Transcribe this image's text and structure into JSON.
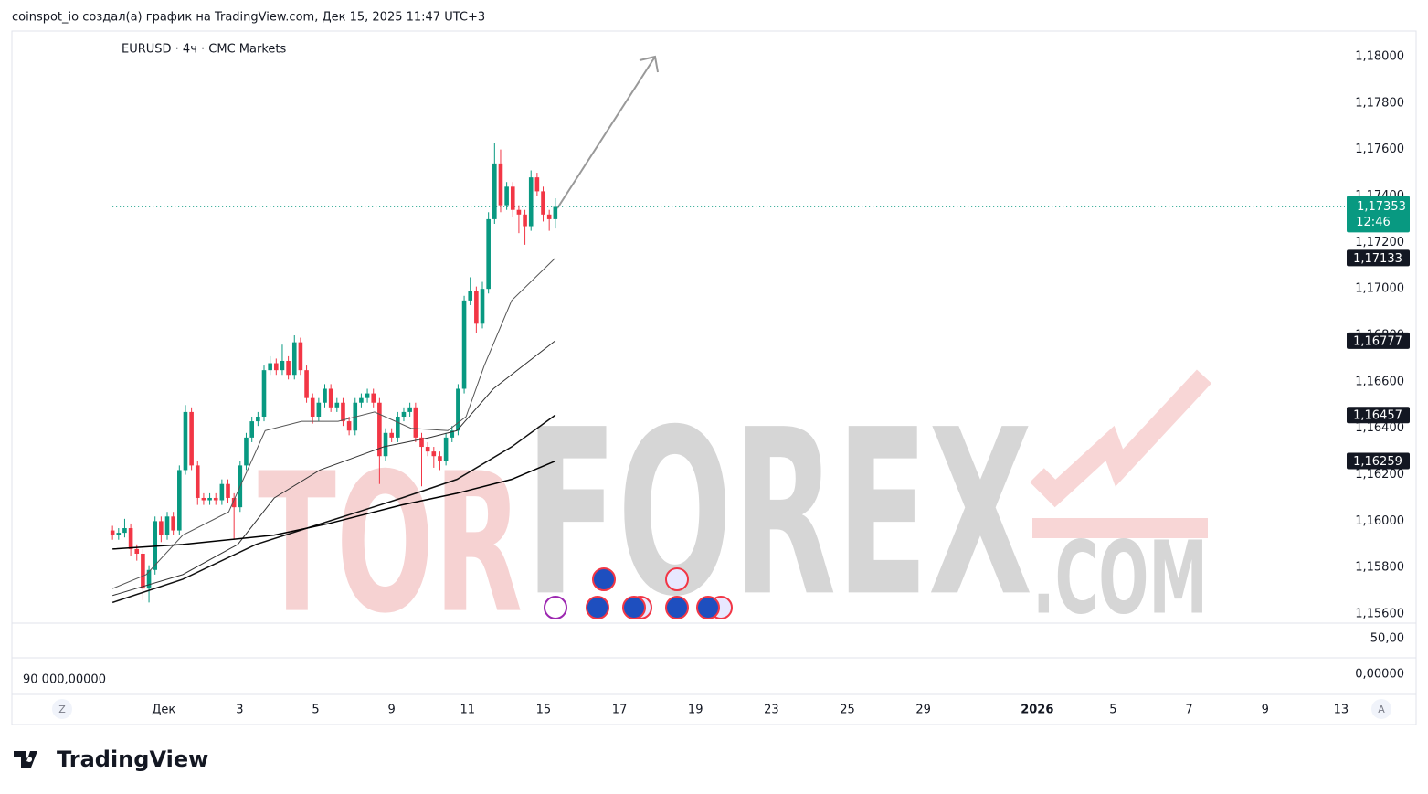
{
  "header": "coinspot_io создал(а) график на TradingView.com, Дек 15, 2025 11:47 UTC+3",
  "footer_brand": "TradingView",
  "chart_data": {
    "type": "candlestick",
    "title": "EURUSD · 4ч · CMC Markets",
    "up_color": "#089981",
    "down_color": "#f23645",
    "x": [
      -1.35,
      -1.19,
      -1.03,
      -0.87,
      -0.71,
      -0.55,
      -0.39,
      -0.23,
      -0.07,
      0.09,
      0.25,
      0.41,
      0.57,
      0.73,
      0.89,
      1.05,
      1.21,
      1.37,
      1.53,
      1.69,
      1.85,
      2.01,
      2.17,
      2.32,
      2.48,
      2.64,
      2.8,
      2.96,
      3.12,
      3.28,
      3.44,
      3.6,
      3.76,
      3.92,
      4.08,
      4.24,
      4.4,
      4.56,
      4.72,
      4.88,
      5.04,
      5.2,
      5.36,
      5.52,
      5.68,
      5.84,
      6.0,
      6.16,
      6.32,
      6.48,
      6.63,
      6.79,
      6.95,
      7.11,
      7.27,
      7.43,
      7.59,
      7.75,
      7.91,
      8.07,
      8.23,
      8.39,
      8.55,
      8.71,
      8.87,
      9.03,
      9.19,
      9.35,
      9.51,
      9.67,
      9.83,
      9.99,
      10.15,
      10.31
    ],
    "ohlc": [
      [
        1.1596,
        1.1598,
        1.1592,
        1.1594
      ],
      [
        1.1594,
        1.1597,
        1.1592,
        1.1595
      ],
      [
        1.1595,
        1.1601,
        1.1593,
        1.1597
      ],
      [
        1.1597,
        1.1599,
        1.1585,
        1.1588
      ],
      [
        1.1588,
        1.159,
        1.1583,
        1.1586
      ],
      [
        1.1586,
        1.1588,
        1.1566,
        1.1571
      ],
      [
        1.1571,
        1.1581,
        1.1565,
        1.1579
      ],
      [
        1.1579,
        1.1602,
        1.1577,
        1.16
      ],
      [
        1.16,
        1.1602,
        1.1591,
        1.1594
      ],
      [
        1.1594,
        1.1604,
        1.1592,
        1.1602
      ],
      [
        1.1602,
        1.1604,
        1.1594,
        1.1596
      ],
      [
        1.1596,
        1.1624,
        1.1594,
        1.1622
      ],
      [
        1.1622,
        1.165,
        1.162,
        1.1647
      ],
      [
        1.1647,
        1.1649,
        1.1622,
        1.1624
      ],
      [
        1.1624,
        1.1626,
        1.1607,
        1.161
      ],
      [
        1.161,
        1.1612,
        1.1607,
        1.1609
      ],
      [
        1.1609,
        1.1612,
        1.1607,
        1.161
      ],
      [
        1.161,
        1.1612,
        1.1607,
        1.1609
      ],
      [
        1.1609,
        1.1618,
        1.1607,
        1.1616
      ],
      [
        1.1616,
        1.1618,
        1.1608,
        1.161
      ],
      [
        1.161,
        1.1612,
        1.1592,
        1.1606
      ],
      [
        1.1606,
        1.1626,
        1.1604,
        1.1624
      ],
      [
        1.1624,
        1.1638,
        1.1622,
        1.1636
      ],
      [
        1.1636,
        1.1645,
        1.1634,
        1.1643
      ],
      [
        1.1643,
        1.1647,
        1.1641,
        1.1645
      ],
      [
        1.1645,
        1.1667,
        1.1643,
        1.1665
      ],
      [
        1.1665,
        1.1671,
        1.1663,
        1.1668
      ],
      [
        1.1668,
        1.167,
        1.1663,
        1.1665
      ],
      [
        1.1665,
        1.1676,
        1.1663,
        1.1669
      ],
      [
        1.1669,
        1.1671,
        1.1661,
        1.1663
      ],
      [
        1.1663,
        1.168,
        1.1661,
        1.1677
      ],
      [
        1.1677,
        1.1679,
        1.1663,
        1.1665
      ],
      [
        1.1665,
        1.1667,
        1.1651,
        1.1653
      ],
      [
        1.1653,
        1.1655,
        1.1642,
        1.1645
      ],
      [
        1.1645,
        1.1653,
        1.1643,
        1.1651
      ],
      [
        1.1651,
        1.1659,
        1.1649,
        1.1657
      ],
      [
        1.1657,
        1.1659,
        1.1647,
        1.1649
      ],
      [
        1.1649,
        1.1653,
        1.1647,
        1.1651
      ],
      [
        1.1651,
        1.1653,
        1.1641,
        1.1643
      ],
      [
        1.1643,
        1.1645,
        1.1637,
        1.1639
      ],
      [
        1.1639,
        1.1653,
        1.1637,
        1.1651
      ],
      [
        1.1651,
        1.1655,
        1.1649,
        1.1653
      ],
      [
        1.1653,
        1.1657,
        1.1651,
        1.1655
      ],
      [
        1.1655,
        1.1657,
        1.1649,
        1.1651
      ],
      [
        1.1651,
        1.1653,
        1.1616,
        1.1628
      ],
      [
        1.1628,
        1.164,
        1.1626,
        1.1638
      ],
      [
        1.1638,
        1.164,
        1.1634,
        1.1636
      ],
      [
        1.1636,
        1.1647,
        1.1634,
        1.1645
      ],
      [
        1.1645,
        1.1649,
        1.1643,
        1.1647
      ],
      [
        1.1647,
        1.1651,
        1.1645,
        1.1649
      ],
      [
        1.1649,
        1.1651,
        1.1634,
        1.1636
      ],
      [
        1.1636,
        1.1638,
        1.1615,
        1.1632
      ],
      [
        1.1632,
        1.1634,
        1.1628,
        1.163
      ],
      [
        1.163,
        1.1632,
        1.1623,
        1.1628
      ],
      [
        1.1628,
        1.163,
        1.1622,
        1.1626
      ],
      [
        1.1626,
        1.1638,
        1.1624,
        1.1636
      ],
      [
        1.1636,
        1.1641,
        1.1634,
        1.1639
      ],
      [
        1.1639,
        1.1659,
        1.1637,
        1.1657
      ],
      [
        1.1657,
        1.1697,
        1.1655,
        1.1695
      ],
      [
        1.1695,
        1.1705,
        1.1693,
        1.1699
      ],
      [
        1.1699,
        1.1701,
        1.1681,
        1.1685
      ],
      [
        1.1685,
        1.1703,
        1.1683,
        1.17
      ],
      [
        1.17,
        1.1733,
        1.1698,
        1.173
      ],
      [
        1.173,
        1.1763,
        1.1728,
        1.1754
      ],
      [
        1.1754,
        1.176,
        1.1733,
        1.1736
      ],
      [
        1.1736,
        1.1746,
        1.1734,
        1.1744
      ],
      [
        1.1744,
        1.1746,
        1.1731,
        1.1734
      ],
      [
        1.1734,
        1.1736,
        1.1724,
        1.1732
      ],
      [
        1.1732,
        1.1734,
        1.1719,
        1.1727
      ],
      [
        1.1727,
        1.1751,
        1.1725,
        1.1748
      ],
      [
        1.1748,
        1.175,
        1.174,
        1.1742
      ],
      [
        1.1742,
        1.1744,
        1.1729,
        1.1732
      ],
      [
        1.1732,
        1.1734,
        1.1725,
        1.173
      ],
      [
        1.173,
        1.1739,
        1.1726,
        1.17353
      ]
    ],
    "last_price": {
      "value": 1.17353,
      "label": "1,17353"
    },
    "countdown": "12:46",
    "overlays": [
      {
        "color": "#555555",
        "width": 1,
        "x": [
          -1.35,
          -0.46,
          0.5,
          1.71,
          2.67,
          3.63,
          4.59,
          5.55,
          6.51,
          7.48,
          7.96,
          8.44,
          9.16,
          10.31
        ],
        "values": [
          1.1571,
          1.1577,
          1.1594,
          1.1604,
          1.1639,
          1.1643,
          1.1643,
          1.1647,
          1.164,
          1.1639,
          1.1645,
          1.1667,
          1.1695,
          1.17133
        ],
        "value_labels": [
          null,
          null,
          null,
          null,
          null,
          null,
          null,
          null,
          null,
          null,
          null,
          null,
          null,
          "1,17133"
        ]
      },
      {
        "color": "#333333",
        "width": 1,
        "x": [
          -1.35,
          0.5,
          1.95,
          2.91,
          4.11,
          5.79,
          7.0,
          7.72,
          8.68,
          10.31
        ],
        "values": [
          1.1568,
          1.1577,
          1.159,
          1.161,
          1.1622,
          1.1632,
          1.1636,
          1.1639,
          1.1657,
          1.16777
        ],
        "value_labels": [
          null,
          null,
          null,
          null,
          null,
          null,
          null,
          null,
          null,
          "1,16777"
        ]
      },
      {
        "color": "#111111",
        "width": 1.5,
        "x": [
          -1.35,
          0.5,
          2.43,
          4.35,
          6.27,
          7.72,
          9.16,
          10.31
        ],
        "values": [
          1.1565,
          1.1575,
          1.159,
          1.16,
          1.161,
          1.1618,
          1.1632,
          1.16457
        ],
        "value_labels": [
          null,
          null,
          null,
          null,
          null,
          null,
          null,
          "1,16457"
        ]
      },
      {
        "color": "#000000",
        "width": 1.5,
        "x": [
          -1.35,
          0.5,
          2.91,
          4.35,
          6.27,
          7.72,
          9.16,
          10.31
        ],
        "values": [
          1.1588,
          1.159,
          1.1594,
          1.1599,
          1.1607,
          1.1612,
          1.1618,
          1.16259
        ],
        "value_labels": [
          null,
          null,
          null,
          null,
          null,
          null,
          null,
          "1,16259"
        ]
      }
    ],
    "xlim": [
      -4,
      31.1
    ],
    "ylim": [
      1.15561,
      1.18106
    ],
    "grid": false,
    "xticks": [
      {
        "value": 0,
        "label": "Дек"
      },
      {
        "value": 2,
        "label": "3"
      },
      {
        "value": 4,
        "label": "5"
      },
      {
        "value": 6,
        "label": "9"
      },
      {
        "value": 8,
        "label": "11"
      },
      {
        "value": 10,
        "label": "15"
      },
      {
        "value": 12,
        "label": "17"
      },
      {
        "value": 14,
        "label": "19"
      },
      {
        "value": 16,
        "label": "23"
      },
      {
        "value": 18,
        "label": "25"
      },
      {
        "value": 20,
        "label": "29"
      },
      {
        "value": 23,
        "label": "2026"
      },
      {
        "value": 25,
        "label": "5"
      },
      {
        "value": 27,
        "label": "7"
      },
      {
        "value": 29,
        "label": "9"
      },
      {
        "value": 31,
        "label": "13"
      }
    ],
    "yticks": [
      {
        "value": 1.156,
        "label": "1,15600"
      },
      {
        "value": 1.158,
        "label": "1,15800"
      },
      {
        "value": 1.16,
        "label": "1,16000"
      },
      {
        "value": 1.162,
        "label": "1,16200"
      },
      {
        "value": 1.164,
        "label": "1,16400"
      },
      {
        "value": 1.166,
        "label": "1,16600"
      },
      {
        "value": 1.168,
        "label": "1,16800"
      },
      {
        "value": 1.17,
        "label": "1,17000"
      },
      {
        "value": 1.172,
        "label": "1,17200"
      },
      {
        "value": 1.174,
        "label": "1,17400"
      },
      {
        "value": 1.176,
        "label": "1,17600"
      },
      {
        "value": 1.178,
        "label": "1,17800"
      },
      {
        "value": 1.18,
        "label": "1,18000"
      }
    ],
    "axis_buttons": [
      "Z",
      "A"
    ],
    "watermark": [
      "TOR",
      "FOREX",
      ".COM"
    ],
    "panel_labels": [
      "50,00",
      "0,00000"
    ],
    "volume_label": "90 000,00000"
  }
}
